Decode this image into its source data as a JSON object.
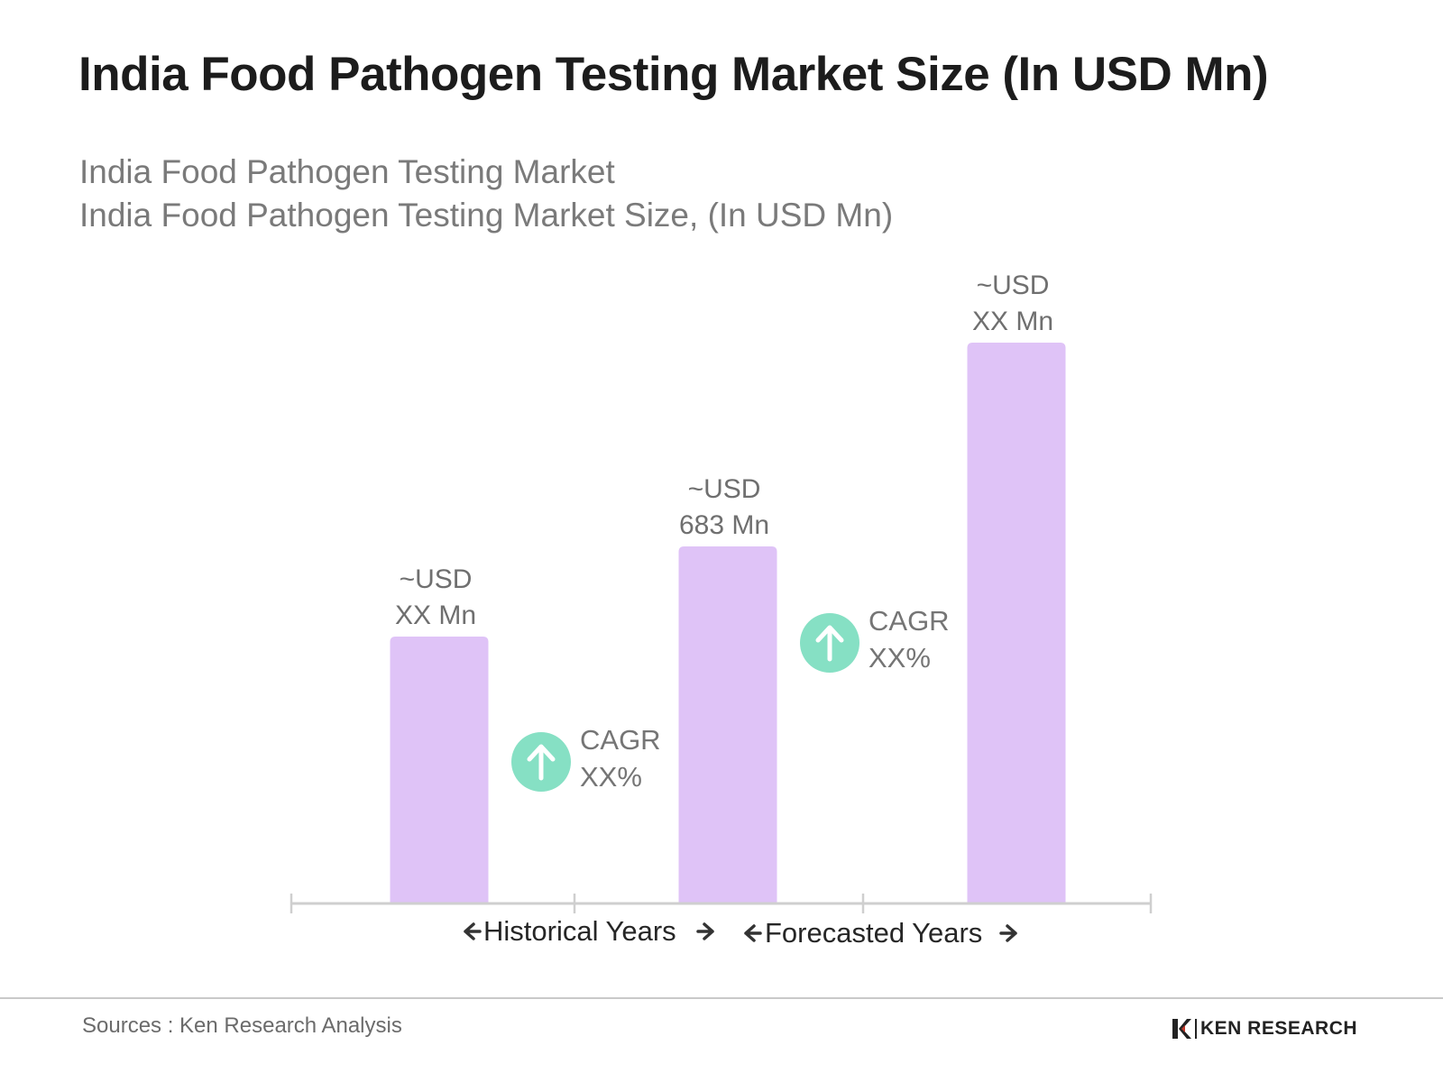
{
  "title": "India Food Pathogen Testing Market Size (In USD Mn)",
  "subtitle_line1": "India Food Pathogen Testing Market",
  "subtitle_line2": "India Food Pathogen Testing Market Size, (In USD Mn)",
  "colors": {
    "bar": "#dfc3f7",
    "cagr_circle": "#86e0c4",
    "axis": "#cfcfcf"
  },
  "chart_data": {
    "type": "bar",
    "categories": [
      "",
      "",
      ""
    ],
    "values": [
      null,
      683,
      null
    ],
    "data_labels": [
      [
        "~USD",
        "XX Mn"
      ],
      [
        "~USD",
        "683 Mn"
      ],
      [
        "~USD",
        "XX Mn"
      ]
    ],
    "annotations": [
      {
        "icon": "arrow-up-icon",
        "line1": "CAGR",
        "line2": "XX%"
      },
      {
        "icon": "arrow-up-icon",
        "line1": "CAGR",
        "line2": "XX%"
      }
    ],
    "period_labels": [
      "Historical Years",
      "Forecasted Years"
    ],
    "grid": false
  },
  "footer": {
    "source": "Sources : Ken Research Analysis",
    "brand": "KEN RESEARCH"
  }
}
